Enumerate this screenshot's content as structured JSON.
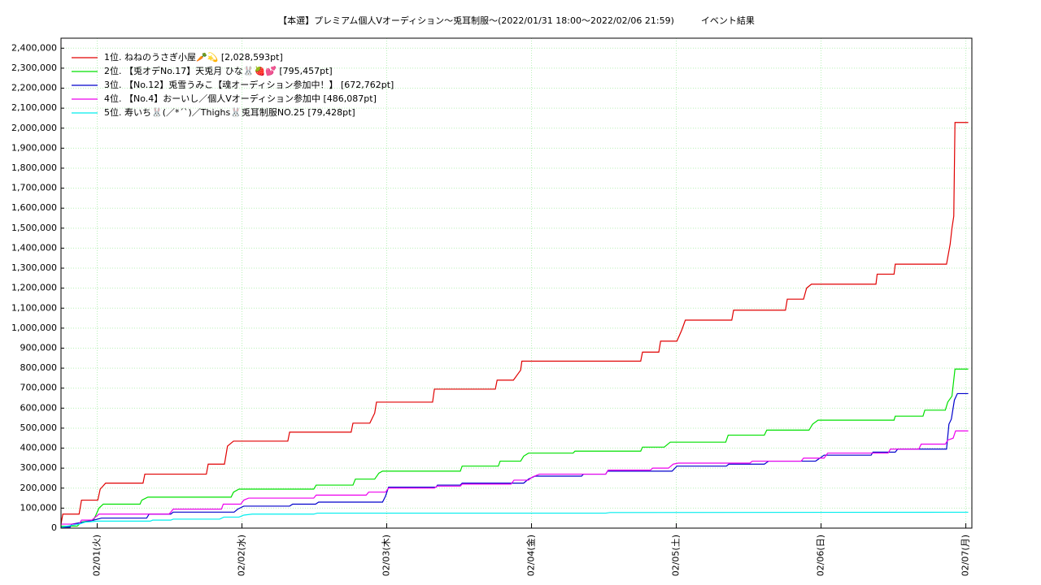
{
  "chart_data": {
    "type": "line",
    "title": "【本選】プレミアム個人Vオーディション〜兎耳制服～(2022/01/31 18:00～2022/02/06 21:59)　　　イベント結果",
    "xlim": [
      0,
      151
    ],
    "xticks": [
      {
        "value": 6,
        "label": "02/01(火)"
      },
      {
        "value": 30,
        "label": "02/02(水)"
      },
      {
        "value": 54,
        "label": "02/03(木)"
      },
      {
        "value": 78,
        "label": "02/04(金)"
      },
      {
        "value": 102,
        "label": "02/05(土)"
      },
      {
        "value": 126,
        "label": "02/06(日)"
      },
      {
        "value": 150,
        "label": "02/07(月)"
      }
    ],
    "ylim": [
      0,
      2450000
    ],
    "yticks": [
      0,
      {
        "value": 100000,
        "label": "100,000"
      },
      {
        "value": 200000,
        "label": "200,000"
      },
      {
        "value": 300000,
        "label": "300,000"
      },
      {
        "value": 400000,
        "label": "400,000"
      },
      {
        "value": 500000,
        "label": "500,000"
      },
      {
        "value": 600000,
        "label": "600,000"
      },
      {
        "value": 700000,
        "label": "700,000"
      },
      {
        "value": 800000,
        "label": "800,000"
      },
      {
        "value": 900000,
        "label": "900,000"
      },
      {
        "value": 1000000,
        "label": "1,000,000"
      },
      {
        "value": 1100000,
        "label": "1,100,000"
      },
      {
        "value": 1200000,
        "label": "1,200,000"
      },
      {
        "value": 1300000,
        "label": "1,300,000"
      },
      {
        "value": 1400000,
        "label": "1,400,000"
      },
      {
        "value": 1500000,
        "label": "1,500,000"
      },
      {
        "value": 1600000,
        "label": "1,600,000"
      },
      {
        "value": 1700000,
        "label": "1,700,000"
      },
      {
        "value": 1800000,
        "label": "1,800,000"
      },
      {
        "value": 1900000,
        "label": "1,900,000"
      },
      {
        "value": 2000000,
        "label": "2,000,000"
      },
      {
        "value": 2100000,
        "label": "2,100,000"
      },
      {
        "value": 2200000,
        "label": "2,200,000"
      },
      {
        "value": 2300000,
        "label": "2,300,000"
      },
      {
        "value": 2400000,
        "label": "2,400,000"
      }
    ],
    "grid": true,
    "legend": "upper left",
    "series": [
      {
        "name": "1位. ねねのうさぎ小屋🥕💫 [2,028,593pt]",
        "color": "#e00000",
        "x": [
          0,
          0.3,
          3.0,
          3.4,
          6.1,
          6.5,
          7.4,
          13.6,
          13.9,
          24.1,
          24.4,
          27.1,
          27.6,
          28.6,
          37.6,
          37.9,
          48.1,
          48.4,
          51.2,
          52.0,
          52.3,
          61.6,
          61.9,
          72.0,
          72.3,
          75.0,
          76.2,
          76.4,
          96.1,
          96.4,
          99.1,
          99.4,
          102.1,
          102.9,
          103.5,
          111.2,
          111.5,
          120.1,
          120.4,
          123.1,
          123.6,
          124.4,
          135.1,
          135.3,
          138.1,
          138.3,
          146.8,
          147.4,
          147.7,
          148.0,
          148.2,
          150.4
        ],
        "values": [
          20000,
          70000,
          70000,
          140000,
          140000,
          195000,
          225000,
          225000,
          270000,
          270000,
          320000,
          320000,
          410000,
          435000,
          435000,
          480000,
          480000,
          525000,
          525000,
          575000,
          630000,
          630000,
          695000,
          695000,
          740000,
          740000,
          790000,
          835000,
          835000,
          880000,
          880000,
          935000,
          935000,
          990000,
          1040000,
          1040000,
          1090000,
          1090000,
          1145000,
          1145000,
          1200000,
          1220000,
          1220000,
          1270000,
          1270000,
          1320000,
          1320000,
          1420000,
          1500000,
          1560000,
          2028593,
          2028593
        ]
      },
      {
        "name": "2位. 【兎オデNo.17】天兎月 ひな🐰🍓💕 [795,457pt]",
        "color": "#00e000",
        "x": [
          0,
          2.7,
          3.4,
          5.4,
          6.3,
          7.0,
          13.1,
          13.4,
          14.4,
          28.2,
          28.6,
          29.5,
          41.9,
          42.3,
          48.4,
          48.8,
          52.0,
          52.7,
          53.3,
          66.2,
          66.5,
          72.5,
          72.8,
          76.2,
          76.7,
          77.5,
          84.9,
          85.2,
          96.1,
          96.4,
          100.0,
          101.0,
          110.2,
          110.6,
          116.6,
          117.0,
          124.0,
          124.6,
          125.5,
          138.1,
          138.3,
          142.9,
          143.2,
          146.6,
          147.0,
          147.7,
          148.2,
          150.4
        ],
        "values": [
          10000,
          10000,
          30000,
          40000,
          100000,
          120000,
          120000,
          140000,
          155000,
          155000,
          180000,
          195000,
          195000,
          215000,
          215000,
          245000,
          245000,
          275000,
          285000,
          285000,
          310000,
          310000,
          335000,
          335000,
          360000,
          375000,
          375000,
          385000,
          385000,
          405000,
          405000,
          430000,
          430000,
          465000,
          465000,
          490000,
          490000,
          520000,
          540000,
          540000,
          560000,
          560000,
          590000,
          590000,
          630000,
          660000,
          795457,
          795457
        ]
      },
      {
        "name": "3位. 【No.12】兎雪うみこ【魂オーディション参加中！】 [672,762pt]",
        "color": "#0000cc",
        "x": [
          0,
          1.5,
          1.8,
          3.8,
          5.4,
          6.7,
          14.2,
          14.6,
          18.2,
          18.6,
          28.7,
          29.3,
          30.3,
          37.9,
          38.4,
          42.2,
          42.7,
          53.3,
          53.8,
          54.3,
          62.2,
          62.4,
          66.2,
          66.5,
          76.7,
          77.5,
          78.6,
          86.3,
          86.6,
          90.3,
          90.6,
          101.3,
          102.1,
          110.3,
          110.7,
          116.6,
          117.3,
          125.1,
          125.8,
          126.5,
          134.3,
          134.6,
          138.3,
          138.7,
          146.8,
          147.2,
          147.6,
          148.1,
          148.6,
          150.4
        ],
        "values": [
          5000,
          5000,
          20000,
          30000,
          40000,
          50000,
          50000,
          70000,
          70000,
          80000,
          80000,
          95000,
          110000,
          110000,
          120000,
          120000,
          130000,
          130000,
          160000,
          205000,
          205000,
          215000,
          215000,
          225000,
          225000,
          245000,
          260000,
          260000,
          270000,
          270000,
          285000,
          285000,
          310000,
          310000,
          320000,
          320000,
          335000,
          335000,
          350000,
          365000,
          365000,
          380000,
          380000,
          395000,
          395000,
          520000,
          545000,
          640000,
          672762,
          672762
        ]
      },
      {
        "name": "4位. 【No.4】おーいし／個人Vオーディション参加中 [486,087pt]",
        "color": "#ee00ee",
        "x": [
          0,
          3.0,
          3.4,
          5.1,
          5.5,
          6.3,
          17.9,
          18.2,
          18.6,
          26.6,
          26.9,
          29.8,
          30.3,
          31.1,
          41.9,
          42.3,
          50.6,
          51.0,
          53.8,
          54.3,
          61.9,
          62.3,
          66.2,
          66.5,
          74.6,
          75.1,
          77.5,
          78.1,
          79.3,
          90.3,
          90.7,
          97.7,
          98.1,
          100.7,
          101.5,
          102.3,
          114.2,
          114.6,
          122.7,
          123.1,
          126.5,
          127.1,
          137.1,
          137.5,
          142.2,
          142.6,
          146.6,
          147.0,
          147.9,
          148.3,
          150.4
        ],
        "values": [
          20000,
          20000,
          40000,
          40000,
          50000,
          70000,
          70000,
          80000,
          95000,
          95000,
          120000,
          120000,
          140000,
          150000,
          150000,
          165000,
          165000,
          180000,
          180000,
          200000,
          200000,
          210000,
          210000,
          220000,
          220000,
          240000,
          240000,
          255000,
          270000,
          270000,
          290000,
          290000,
          300000,
          300000,
          320000,
          325000,
          325000,
          335000,
          335000,
          350000,
          350000,
          375000,
          375000,
          395000,
          395000,
          420000,
          420000,
          440000,
          450000,
          486087,
          486087
        ]
      },
      {
        "name": "5位. 寿いち🐰(／*´`)／Thighs🐰兎耳制服NO.25 [79,428pt]",
        "color": "#00eeee",
        "x": [
          0,
          3.0,
          4.0,
          6.0,
          14.8,
          15.2,
          18.2,
          18.6,
          26.3,
          27.0,
          29.5,
          30.3,
          31.7,
          41.9,
          42.5,
          90.3,
          91.0,
          147.0,
          150.4
        ],
        "values": [
          5000,
          20000,
          30000,
          35000,
          35000,
          40000,
          40000,
          45000,
          45000,
          55000,
          55000,
          65000,
          70000,
          70000,
          75000,
          75000,
          78000,
          79428,
          79428
        ]
      }
    ]
  }
}
